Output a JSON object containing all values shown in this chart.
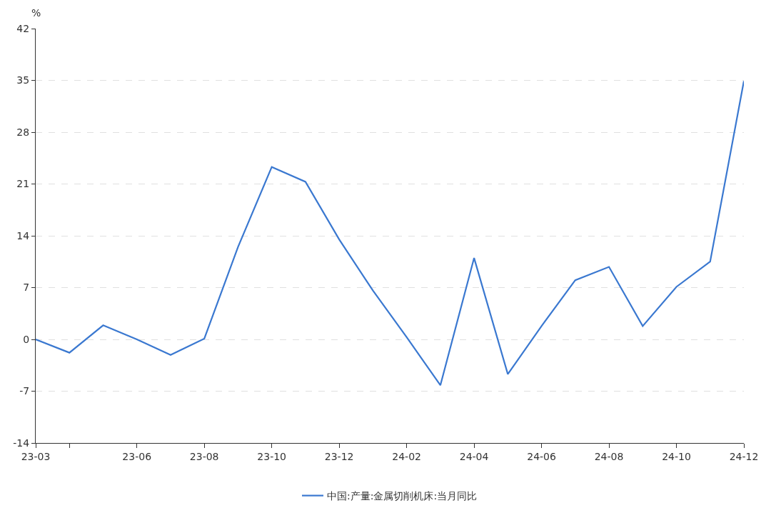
{
  "chart_data": {
    "type": "line",
    "ylabel": "%",
    "categories": [
      "23-03",
      null,
      null,
      "23-06",
      null,
      "23-08",
      null,
      "23-10",
      null,
      "23-12",
      null,
      "24-02",
      null,
      "24-04",
      null,
      "24-06",
      null,
      "24-08",
      null,
      "24-10",
      null,
      "24-12"
    ],
    "series": [
      {
        "name": "中国:产量:金属切削机床:当月同比",
        "color": "#3a78d0",
        "values": [
          0,
          -1.8,
          1.9,
          0,
          -2.1,
          0.1,
          12.5,
          23.3,
          21.3,
          13.5,
          6.6,
          0.3,
          -6.2,
          11.0,
          -4.7,
          1.8,
          8.0,
          9.8,
          1.8,
          7.1,
          10.5,
          34.9
        ]
      }
    ],
    "ylim": [
      -14,
      42
    ],
    "yticks": [
      -14,
      -7,
      0,
      7,
      14,
      21,
      28,
      35,
      42
    ],
    "grid": "y",
    "legend": "bottom",
    "marker": "none",
    "line_style": "solid"
  }
}
